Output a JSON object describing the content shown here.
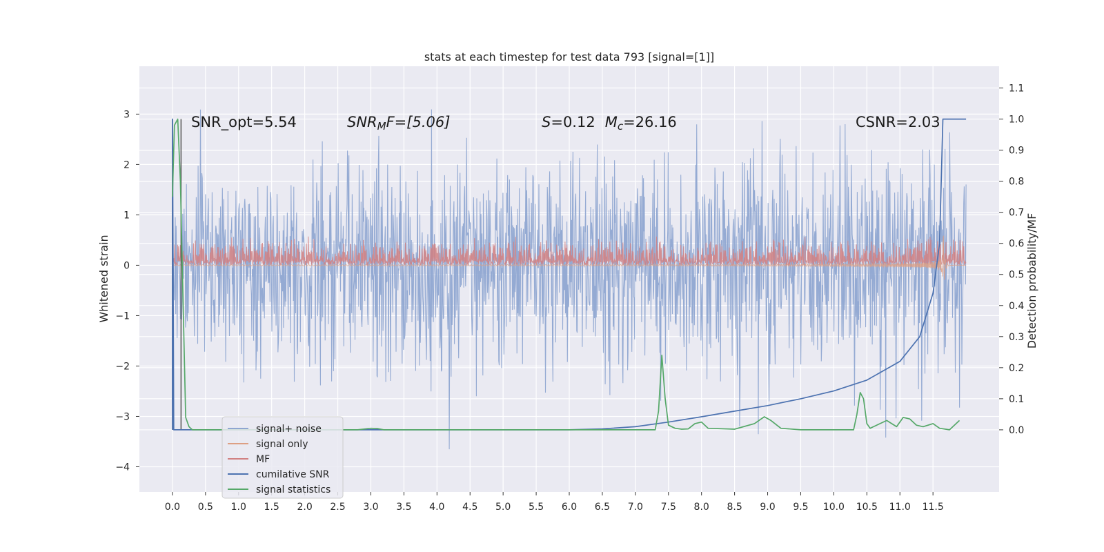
{
  "chart_data": {
    "type": "line",
    "title": "stats at each timestep for test data 793 [signal=[1]]",
    "ylabel_left": "Whitened strain",
    "ylabel_right": "Detection probability/MF",
    "xlim": [
      -0.5,
      12.5
    ],
    "ylim_left": [
      -4.5,
      3.95
    ],
    "ylim_right": [
      -0.2,
      1.17
    ],
    "x_ticks": [
      "0.0",
      "0.5",
      "1.0",
      "1.5",
      "2.0",
      "2.5",
      "3.0",
      "3.5",
      "4.0",
      "4.5",
      "5.0",
      "5.5",
      "6.0",
      "6.5",
      "7.0",
      "7.5",
      "8.0",
      "8.5",
      "9.0",
      "9.5",
      "10.0",
      "10.5",
      "11.0",
      "11.5"
    ],
    "y_ticks_left": [
      "3",
      "2",
      "1",
      "0",
      "−1",
      "−2",
      "−3",
      "−4"
    ],
    "y_ticks_right": [
      "1.1",
      "1.0",
      "0.9",
      "0.8",
      "0.7",
      "0.6",
      "0.5",
      "0.4",
      "0.3",
      "0.2",
      "0.1",
      "0.0"
    ],
    "grid": true,
    "legend_position": "lower-left",
    "annotations": {
      "snr_opt": "SNR_opt=5.54",
      "snr_mf": "SNR",
      "snr_mf_sub": "M",
      "snr_mf_rest": "F=[5.06]",
      "s_var": "S",
      "s_rest": "=0.12",
      "mc_var": "M",
      "mc_sub": "c",
      "mc_rest": "=26.16",
      "csnr": "CSNR=2.03"
    },
    "series": [
      {
        "name": "signal+ noise",
        "axis": "left",
        "color": "#8fa6d1",
        "style": "noise",
        "t_range": [
          0,
          12
        ],
        "amplitude_std": 1.0
      },
      {
        "name": "signal only",
        "axis": "left",
        "color": "#dd9f83",
        "style": "chirp",
        "t_range": [
          0,
          12
        ],
        "merger_time": 11.65
      },
      {
        "name": "MF",
        "axis": "left",
        "color": "#d18081",
        "style": "band",
        "t_range": [
          0,
          12
        ],
        "band": [
          0.0,
          0.6
        ]
      },
      {
        "name": "cumilative SNR",
        "axis": "right",
        "color": "#4c72b0",
        "x": [
          0,
          0.001,
          0.02,
          6.0,
          6.5,
          7.0,
          7.5,
          8.0,
          8.5,
          9.0,
          9.5,
          10.0,
          10.5,
          11.0,
          11.3,
          11.5,
          11.6,
          11.65,
          12.0
        ],
        "y": [
          0.0,
          1.0,
          0.0,
          0.0,
          0.003,
          0.01,
          0.025,
          0.042,
          0.06,
          0.078,
          0.1,
          0.125,
          0.16,
          0.22,
          0.3,
          0.44,
          0.6,
          1.0,
          1.0
        ]
      },
      {
        "name": "signal statistics",
        "axis": "right",
        "color": "#55a868",
        "x": [
          0,
          0.03,
          0.08,
          0.12,
          0.2,
          0.25,
          0.3,
          0.4,
          2.8,
          3.0,
          3.1,
          3.2,
          7.3,
          7.35,
          7.4,
          7.45,
          7.5,
          7.6,
          7.7,
          7.8,
          7.9,
          8.0,
          8.1,
          8.5,
          8.8,
          8.95,
          9.05,
          9.2,
          9.5,
          10.3,
          10.35,
          10.4,
          10.45,
          10.5,
          10.55,
          10.6,
          10.7,
          10.8,
          10.95,
          11.05,
          11.15,
          11.25,
          11.35,
          11.5,
          11.6,
          11.75,
          11.9
        ],
        "y": [
          0.75,
          0.98,
          1.0,
          0.8,
          0.04,
          0.01,
          0.0,
          0.0,
          0.0,
          0.005,
          0.004,
          0.0,
          0.0,
          0.06,
          0.24,
          0.1,
          0.015,
          0.005,
          0.002,
          0.003,
          0.02,
          0.025,
          0.005,
          0.002,
          0.02,
          0.042,
          0.03,
          0.005,
          0.0,
          0.0,
          0.05,
          0.12,
          0.1,
          0.02,
          0.005,
          0.01,
          0.02,
          0.03,
          0.01,
          0.04,
          0.035,
          0.015,
          0.01,
          0.02,
          0.005,
          0.0,
          0.03
        ]
      }
    ],
    "vertical_lines": [
      {
        "x": 0.0,
        "y_right": [
          0.0,
          1.0
        ],
        "color": "#555555"
      },
      {
        "x": 0.13,
        "y_right": [
          0.0,
          1.0
        ],
        "color": "#555555"
      }
    ]
  }
}
